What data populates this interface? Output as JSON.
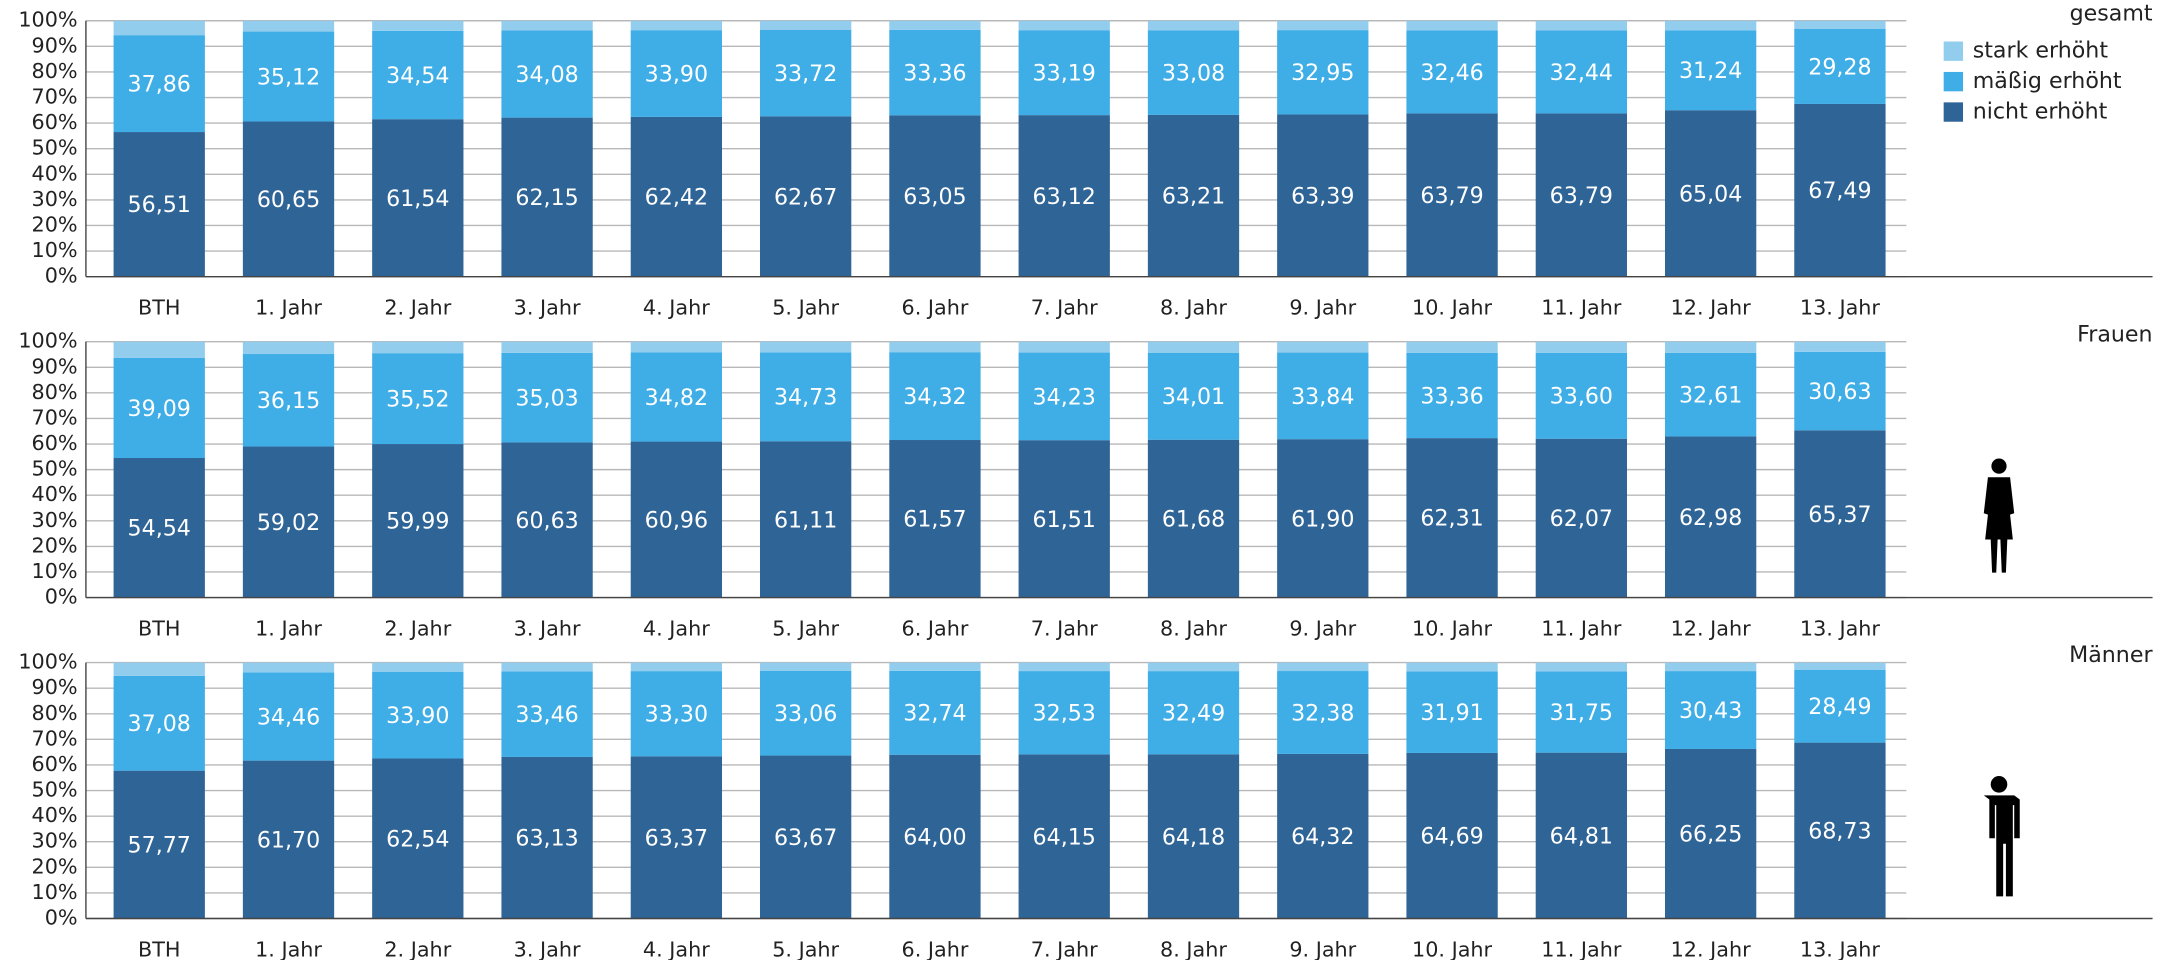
{
  "chart_data": [
    {
      "type": "stacked_bar",
      "title": "gesamt",
      "legend": "top-right",
      "categories": [
        "BTH",
        "1. Jahr",
        "2. Jahr",
        "3. Jahr",
        "4. Jahr",
        "5. Jahr",
        "6. Jahr",
        "7. Jahr",
        "8. Jahr",
        "9. Jahr",
        "10. Jahr",
        "11. Jahr",
        "12. Jahr",
        "13. Jahr"
      ],
      "ylim": [
        0,
        100
      ],
      "yticks": [
        {
          "value": 0,
          "label": "0%"
        },
        {
          "value": 10,
          "label": "10%"
        },
        {
          "value": 20,
          "label": "20%"
        },
        {
          "value": 30,
          "label": "30%"
        },
        {
          "value": 40,
          "label": "40%"
        },
        {
          "value": 50,
          "label": "50%"
        },
        {
          "value": 60,
          "label": "60%"
        },
        {
          "value": 70,
          "label": "70%"
        },
        {
          "value": 80,
          "label": "80%"
        },
        {
          "value": 90,
          "label": "90%"
        },
        {
          "value": 100,
          "label": "100%"
        }
      ],
      "grid": true,
      "series": [
        {
          "name": "nicht erhöht",
          "color": "#2f6496",
          "values": [
            56.51,
            60.65,
            61.54,
            62.15,
            62.42,
            62.67,
            63.05,
            63.12,
            63.21,
            63.39,
            63.79,
            63.79,
            65.04,
            67.49
          ],
          "value_labels": [
            "56,51",
            "60,65",
            "61,54",
            "62,15",
            "62,42",
            "62,67",
            "63,05",
            "63,12",
            "63,21",
            "63,39",
            "63,79",
            "63,79",
            "65,04",
            "67,49"
          ]
        },
        {
          "name": "mäßig erhöht",
          "color": "#3fade6",
          "values": [
            37.86,
            35.12,
            34.54,
            34.08,
            33.9,
            33.72,
            33.36,
            33.19,
            33.08,
            32.95,
            32.46,
            32.44,
            31.24,
            29.28
          ],
          "value_labels": [
            "37,86",
            "35,12",
            "34,54",
            "34,08",
            "33,90",
            "33,72",
            "33,36",
            "33,19",
            "33,08",
            "32,95",
            "32,46",
            "32,44",
            "31,24",
            "29,28"
          ]
        },
        {
          "name": "stark erhöht",
          "color": "#93cdee",
          "values": [
            5.63,
            4.23,
            3.92,
            3.77,
            3.68,
            3.61,
            3.59,
            3.69,
            3.71,
            3.66,
            3.75,
            3.77,
            3.72,
            3.23
          ]
        }
      ]
    },
    {
      "type": "stacked_bar",
      "title": "Frauen",
      "categories": [
        "BTH",
        "1. Jahr",
        "2. Jahr",
        "3. Jahr",
        "4. Jahr",
        "5. Jahr",
        "6. Jahr",
        "7. Jahr",
        "8. Jahr",
        "9. Jahr",
        "10. Jahr",
        "11. Jahr",
        "12. Jahr",
        "13. Jahr"
      ],
      "ylim": [
        0,
        100
      ],
      "yticks": [
        {
          "value": 0,
          "label": "0%"
        },
        {
          "value": 10,
          "label": "10%"
        },
        {
          "value": 20,
          "label": "20%"
        },
        {
          "value": 30,
          "label": "30%"
        },
        {
          "value": 40,
          "label": "40%"
        },
        {
          "value": 50,
          "label": "50%"
        },
        {
          "value": 60,
          "label": "60%"
        },
        {
          "value": 70,
          "label": "70%"
        },
        {
          "value": 80,
          "label": "80%"
        },
        {
          "value": 90,
          "label": "90%"
        },
        {
          "value": 100,
          "label": "100%"
        }
      ],
      "grid": true,
      "series": [
        {
          "color": "#2f6496",
          "values": [
            54.54,
            59.02,
            59.99,
            60.63,
            60.96,
            61.11,
            61.57,
            61.51,
            61.68,
            61.9,
            62.31,
            62.07,
            62.98,
            65.37
          ],
          "value_labels": [
            "54,54",
            "59,02",
            "59,99",
            "60,63",
            "60,96",
            "61,11",
            "61,57",
            "61,51",
            "61,68",
            "61,90",
            "62,31",
            "62,07",
            "62,98",
            "65,37"
          ]
        },
        {
          "color": "#3fade6",
          "values": [
            39.09,
            36.15,
            35.52,
            35.03,
            34.82,
            34.73,
            34.32,
            34.23,
            34.01,
            33.84,
            33.36,
            33.6,
            32.61,
            30.63
          ],
          "value_labels": [
            "39,09",
            "36,15",
            "35,52",
            "35,03",
            "34,82",
            "34,73",
            "34,32",
            "34,23",
            "34,01",
            "33,84",
            "33,36",
            "33,60",
            "32,61",
            "30,63"
          ]
        },
        {
          "color": "#93cdee",
          "values": [
            6.37,
            4.83,
            4.49,
            4.34,
            4.22,
            4.16,
            4.11,
            4.26,
            4.31,
            4.26,
            4.33,
            4.33,
            4.41,
            4.0
          ]
        }
      ]
    },
    {
      "type": "stacked_bar",
      "title": "Männer",
      "categories": [
        "BTH",
        "1. Jahr",
        "2. Jahr",
        "3. Jahr",
        "4. Jahr",
        "5. Jahr",
        "6. Jahr",
        "7. Jahr",
        "8. Jahr",
        "9. Jahr",
        "10. Jahr",
        "11. Jahr",
        "12. Jahr",
        "13. Jahr"
      ],
      "ylim": [
        0,
        100
      ],
      "yticks": [
        {
          "value": 0,
          "label": "0%"
        },
        {
          "value": 10,
          "label": "10%"
        },
        {
          "value": 20,
          "label": "20%"
        },
        {
          "value": 30,
          "label": "30%"
        },
        {
          "value": 40,
          "label": "40%"
        },
        {
          "value": 50,
          "label": "50%"
        },
        {
          "value": 60,
          "label": "60%"
        },
        {
          "value": 70,
          "label": "70%"
        },
        {
          "value": 80,
          "label": "80%"
        },
        {
          "value": 90,
          "label": "90%"
        },
        {
          "value": 100,
          "label": "100%"
        }
      ],
      "grid": true,
      "series": [
        {
          "color": "#2f6496",
          "values": [
            57.77,
            61.7,
            62.54,
            63.13,
            63.37,
            63.67,
            64.0,
            64.15,
            64.18,
            64.32,
            64.69,
            64.81,
            66.25,
            68.73
          ],
          "value_labels": [
            "57,77",
            "61,70",
            "62,54",
            "63,13",
            "63,37",
            "63,67",
            "64,00",
            "64,15",
            "64,18",
            "64,32",
            "64,69",
            "64,81",
            "66,25",
            "68,73"
          ]
        },
        {
          "color": "#3fade6",
          "values": [
            37.08,
            34.46,
            33.9,
            33.46,
            33.3,
            33.06,
            32.74,
            32.53,
            32.49,
            32.38,
            31.91,
            31.75,
            30.43,
            28.49
          ],
          "value_labels": [
            "37,08",
            "34,46",
            "33,90",
            "33,46",
            "33,30",
            "33,06",
            "32,74",
            "32,53",
            "32,49",
            "32,38",
            "31,91",
            "31,75",
            "30,43",
            "28,49"
          ]
        },
        {
          "color": "#93cdee",
          "values": [
            5.15,
            3.84,
            3.56,
            3.41,
            3.33,
            3.27,
            3.26,
            3.32,
            3.33,
            3.3,
            3.4,
            3.44,
            3.32,
            2.78
          ]
        }
      ]
    }
  ]
}
